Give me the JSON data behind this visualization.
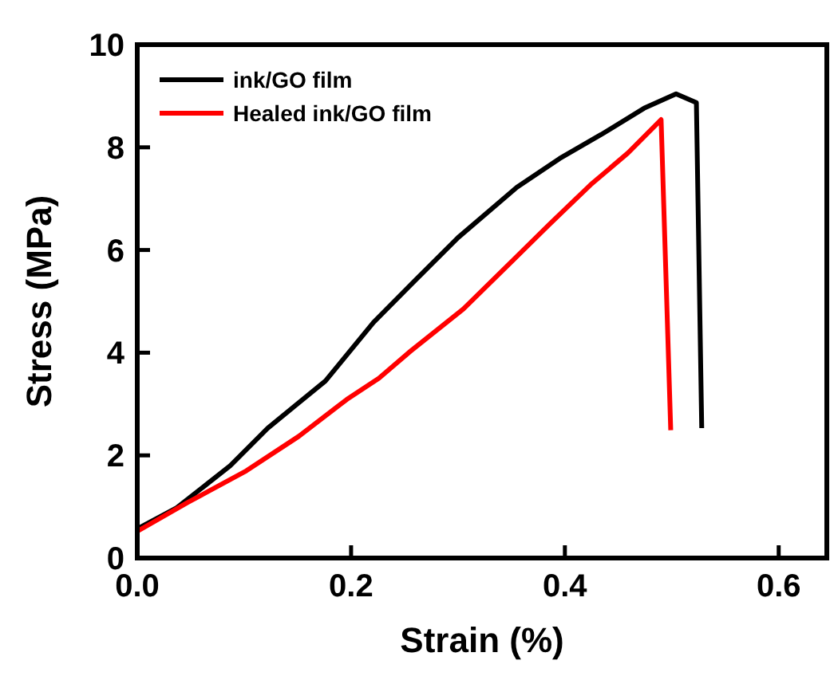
{
  "chart_data": {
    "type": "line",
    "xlabel": "Strain (%)",
    "ylabel": "Stress (MPa)",
    "xlim": [
      0,
      0.645
    ],
    "xticks": [
      {
        "value": 0,
        "label": "0.0"
      },
      {
        "value": 0.2,
        "label": "0.2"
      },
      {
        "value": 0.4,
        "label": "0.4"
      },
      {
        "value": 0.6,
        "label": "0.6"
      }
    ],
    "ylim": [
      0,
      10
    ],
    "yticks": [
      0,
      2,
      4,
      6,
      8,
      10
    ],
    "legend": "top left",
    "grid": false,
    "line_style": "solid",
    "marker": "none",
    "series": [
      {
        "name": "ink/GO film",
        "color": "#000000",
        "x": [
          0,
          0.037,
          0.087,
          0.122,
          0.176,
          0.221,
          0.26,
          0.3,
          0.355,
          0.395,
          0.434,
          0.474,
          0.504,
          0.523,
          0.528
        ],
        "values": [
          0.57,
          0.98,
          1.8,
          2.53,
          3.45,
          4.59,
          5.41,
          6.24,
          7.22,
          7.78,
          8.25,
          8.76,
          9.04,
          8.87,
          2.53
        ]
      },
      {
        "name": "Healed ink/GO film",
        "color": "#ff0000",
        "x": [
          0,
          0.047,
          0.102,
          0.151,
          0.196,
          0.226,
          0.255,
          0.305,
          0.35,
          0.385,
          0.424,
          0.459,
          0.49,
          0.499
        ],
        "values": [
          0.52,
          1.08,
          1.7,
          2.37,
          3.09,
          3.5,
          4.02,
          4.85,
          5.77,
          6.49,
          7.27,
          7.89,
          8.54,
          2.49
        ]
      }
    ]
  }
}
